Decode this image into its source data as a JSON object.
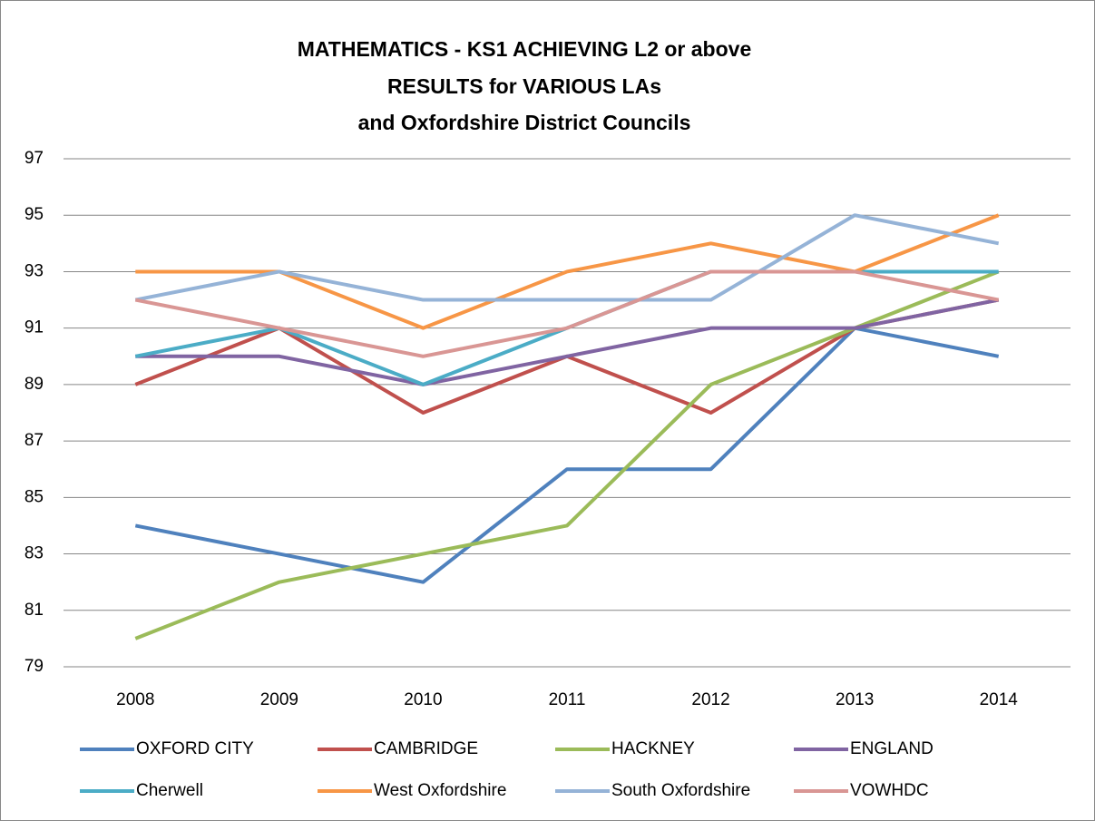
{
  "chart_data": {
    "type": "line",
    "title": [
      "MATHEMATICS - KS1 ACHIEVING L2 or above",
      "RESULTS for VARIOUS LAs",
      "and Oxfordshire District Councils"
    ],
    "categories": [
      "2008",
      "2009",
      "2010",
      "2011",
      "2012",
      "2013",
      "2014"
    ],
    "ylim": [
      79,
      97
    ],
    "yticks": [
      79,
      81,
      83,
      85,
      87,
      89,
      91,
      93,
      95,
      97
    ],
    "grid": true,
    "legend": "bottom",
    "series": [
      {
        "name": "OXFORD CITY",
        "color": "#4f81bd",
        "values": [
          84,
          83,
          82,
          86,
          86,
          91,
          90
        ]
      },
      {
        "name": "CAMBRIDGE",
        "color": "#c0504d",
        "values": [
          89,
          91,
          88,
          90,
          88,
          91,
          92
        ]
      },
      {
        "name": "HACKNEY",
        "color": "#9bbb59",
        "values": [
          80,
          82,
          83,
          84,
          89,
          91,
          93
        ]
      },
      {
        "name": "ENGLAND",
        "color": "#8064a2",
        "values": [
          90,
          90,
          89,
          90,
          91,
          91,
          92
        ]
      },
      {
        "name": "Cherwell",
        "color": "#4bacc6",
        "values": [
          90,
          91,
          89,
          91,
          93,
          93,
          93
        ]
      },
      {
        "name": "West Oxfordshire",
        "color": "#f79646",
        "values": [
          93,
          93,
          91,
          93,
          94,
          93,
          95
        ]
      },
      {
        "name": "South Oxfordshire",
        "color": "#95b3d7",
        "values": [
          92,
          93,
          92,
          92,
          92,
          95,
          94
        ]
      },
      {
        "name": "VOWHDC",
        "color": "#d99694",
        "values": [
          92,
          91,
          90,
          91,
          93,
          93,
          92
        ]
      }
    ]
  }
}
